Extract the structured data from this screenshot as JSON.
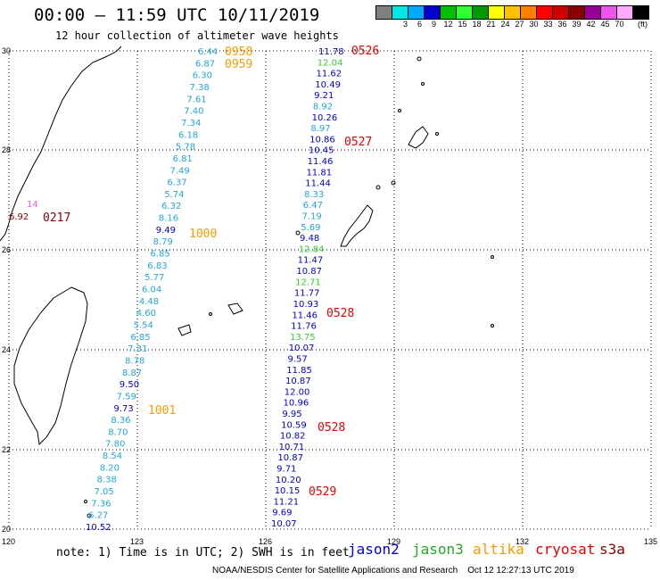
{
  "header": {
    "title": "00:00 – 11:59 UTC 10/11/2019",
    "subtitle": "12 hour collection of altimeter wave heights"
  },
  "scale": {
    "unit": "(ft)",
    "colors": [
      "#808080",
      "#00e5e5",
      "#00aaff",
      "#0000cc",
      "#00c000",
      "#33ff33",
      "#009900",
      "#ffff00",
      "#ffc000",
      "#ff8000",
      "#ff0000",
      "#cc0000",
      "#880000",
      "#990099",
      "#ee55ee",
      "#ffaaff",
      "#000000"
    ],
    "labels": [
      "",
      "3",
      "6",
      "9",
      "12",
      "15",
      "18",
      "21",
      "24",
      "27",
      "30",
      "33",
      "36",
      "39",
      "42",
      "45",
      "70"
    ]
  },
  "axes": {
    "lat_labels": [
      "30",
      "28",
      "26",
      "24",
      "22",
      "20"
    ],
    "lon_labels": [
      "120",
      "123",
      "126",
      "129",
      "132",
      "135"
    ]
  },
  "satellites": {
    "jason2": {
      "label": "jason2",
      "color": "#0000dd"
    },
    "jason3": {
      "label": "jason3",
      "color": "#22aa22"
    },
    "altika": {
      "label": "altika",
      "color": "#ff9900"
    },
    "cryosat": {
      "label": "cryosat",
      "color": "#ee0000"
    },
    "s3a": {
      "label": "s3a",
      "color": "#880000"
    }
  },
  "tracks": [
    {
      "name": "altika-track-1",
      "color": "#22a8d8",
      "values": [
        "6.44",
        "6.87",
        "6.30",
        "7.38",
        "7.61",
        "7.40",
        "7.34",
        "6.18",
        "5.78",
        "6.81",
        "7.49",
        "6.37",
        "5.74",
        "6.32",
        "8.16",
        "9.49",
        "8.79",
        "6.85",
        "6.83",
        "5.77",
        "6.04",
        "4.48",
        "4.60",
        "5.54",
        "6.85",
        "7.31",
        "8.78",
        "8.87",
        "9.50",
        "7.59",
        "9.73",
        "8.36",
        "8.70",
        "7.80",
        "8.54",
        "8.20",
        "8.38",
        "7.05",
        "7.36",
        "6.27",
        "10.52"
      ],
      "colors": [
        "c",
        "c",
        "c",
        "c",
        "c",
        "c",
        "c",
        "c",
        "c",
        "c",
        "c",
        "c",
        "c",
        "c",
        "c",
        "b",
        "c",
        "c",
        "c",
        "c",
        "c",
        "c",
        "c",
        "c",
        "c",
        "c",
        "c",
        "c",
        "b",
        "c",
        "b",
        "c",
        "c",
        "c",
        "c",
        "c",
        "c",
        "c",
        "c",
        "c",
        "b"
      ]
    },
    {
      "name": "cryosat-track-1",
      "color": "#0000cc",
      "values": [
        "11.78",
        "12.04",
        "11.62",
        "10.49",
        "9.21",
        "8.92",
        "10.26",
        "8.97",
        "10.86",
        "10.45",
        "11.46",
        "11.81",
        "11.44",
        "8.33",
        "6.47",
        "7.19",
        "5.69",
        "9.48",
        "12.84",
        "11.47",
        "10.87",
        "12.71",
        "11.77",
        "10.93",
        "11.46",
        "11.76",
        "13.75",
        "10.07",
        "9.57",
        "11.85",
        "10.87",
        "12.00",
        "10.96",
        "9.95",
        "10.59",
        "10.82",
        "10.71",
        "10.87",
        "9.71",
        "10.20",
        "10.15",
        "11.21",
        "9.69",
        "10.07"
      ],
      "colors": [
        "b",
        "g",
        "b",
        "b",
        "b",
        "c",
        "b",
        "c",
        "b",
        "b",
        "b",
        "b",
        "b",
        "c",
        "c",
        "c",
        "c",
        "b",
        "g",
        "b",
        "b",
        "g",
        "b",
        "b",
        "b",
        "b",
        "g",
        "b",
        "b",
        "b",
        "b",
        "b",
        "b",
        "b",
        "b",
        "b",
        "b",
        "b",
        "b",
        "b",
        "b",
        "b",
        "b",
        "b"
      ]
    }
  ],
  "times": [
    {
      "text": "0958",
      "sat": "altika"
    },
    {
      "text": "0959",
      "sat": "altika"
    },
    {
      "text": "1000",
      "sat": "altika"
    },
    {
      "text": "1001",
      "sat": "altika"
    },
    {
      "text": "0526",
      "sat": "cryosat"
    },
    {
      "text": "0527",
      "sat": "cryosat"
    },
    {
      "text": "0528",
      "sat": "cryosat"
    },
    {
      "text": "0528",
      "sat": "cryosat"
    },
    {
      "text": "0529",
      "sat": "cryosat"
    },
    {
      "text": "0217",
      "sat": "s3a"
    }
  ],
  "s3a_values": [
    "14",
    "6.92"
  ],
  "footer": {
    "note": "note: 1) Time is in UTC; 2) SWH is in feet",
    "credit": "NOAA/NESDIS Center for Satellite Applications and Research    Oct 12 12:27:13 UTC 2019"
  }
}
